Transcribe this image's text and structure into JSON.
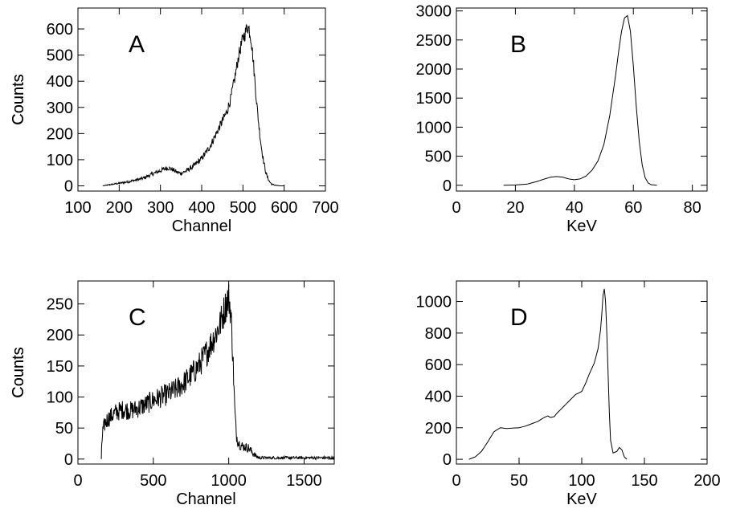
{
  "chart_data": [
    {
      "type": "line",
      "panel_label": "A",
      "xlabel": "Channel",
      "ylabel": "Counts",
      "xlim": [
        100,
        700
      ],
      "ylim": [
        -20,
        680
      ],
      "xticks": [
        100,
        200,
        300,
        400,
        500,
        600,
        700
      ],
      "yticks": [
        0,
        100,
        200,
        300,
        400,
        500,
        600
      ],
      "noisy": true,
      "series": [
        {
          "x": [
            160,
            180,
            200,
            220,
            240,
            260,
            280,
            300,
            310,
            320,
            330,
            340,
            350,
            360,
            380,
            400,
            420,
            440,
            460,
            470,
            480,
            490,
            500,
            505,
            510,
            515,
            520,
            525,
            530,
            535,
            540,
            545,
            550,
            555,
            560,
            565,
            570,
            580,
            590,
            600
          ],
          "y": [
            0,
            5,
            10,
            15,
            22,
            30,
            45,
            58,
            66,
            68,
            62,
            52,
            48,
            55,
            75,
            105,
            150,
            215,
            280,
            330,
            410,
            500,
            565,
            580,
            610,
            600,
            560,
            480,
            380,
            290,
            210,
            145,
            95,
            55,
            30,
            15,
            6,
            2,
            0,
            0
          ]
        }
      ]
    },
    {
      "type": "line",
      "panel_label": "B",
      "xlabel": "KeV",
      "ylabel": "Counts",
      "xlim": [
        0,
        85
      ],
      "ylim": [
        -100,
        3050
      ],
      "xticks": [
        0,
        20,
        40,
        60,
        80
      ],
      "yticks": [
        0,
        500,
        1000,
        1500,
        2000,
        2500,
        3000
      ],
      "noisy": false,
      "series": [
        {
          "x": [
            16,
            20,
            24,
            27,
            30,
            32,
            34,
            36,
            38,
            40,
            42,
            44,
            46,
            48,
            50,
            52,
            54,
            55,
            56,
            57,
            58,
            59,
            60,
            61,
            62,
            63,
            64,
            65,
            66,
            68
          ],
          "y": [
            0,
            5,
            20,
            60,
            110,
            140,
            150,
            140,
            110,
            95,
            110,
            160,
            260,
            420,
            700,
            1200,
            1900,
            2300,
            2650,
            2880,
            2920,
            2650,
            2050,
            1350,
            750,
            350,
            130,
            40,
            10,
            0
          ]
        }
      ]
    },
    {
      "type": "line",
      "panel_label": "C",
      "xlabel": "Channel",
      "ylabel": "Counts",
      "xlim": [
        0,
        1700
      ],
      "ylim": [
        -8,
        287
      ],
      "xticks": [
        0,
        500,
        1000,
        1500
      ],
      "yticks": [
        0,
        50,
        100,
        150,
        200,
        250
      ],
      "noisy": true,
      "series": [
        {
          "x": [
            155,
            158,
            165,
            180,
            200,
            250,
            300,
            350,
            400,
            450,
            500,
            550,
            600,
            650,
            700,
            750,
            800,
            850,
            900,
            940,
            970,
            990,
            1000,
            1010,
            1020,
            1030,
            1040,
            1050,
            1060,
            1070,
            1080,
            1100,
            1130,
            1160,
            1180,
            1200,
            1300,
            1400,
            1500,
            1600,
            1700
          ],
          "y": [
            0,
            25,
            45,
            58,
            65,
            75,
            80,
            78,
            82,
            88,
            95,
            100,
            105,
            112,
            122,
            135,
            150,
            170,
            195,
            215,
            240,
            255,
            260,
            245,
            210,
            150,
            80,
            40,
            30,
            25,
            22,
            20,
            18,
            10,
            5,
            2,
            2,
            2,
            2,
            2,
            2
          ]
        }
      ]
    },
    {
      "type": "line",
      "panel_label": "D",
      "xlabel": "KeV",
      "ylabel": "Counts",
      "xlim": [
        0,
        200
      ],
      "ylim": [
        -30,
        1130
      ],
      "xticks": [
        0,
        50,
        100,
        150,
        200
      ],
      "yticks": [
        0,
        200,
        400,
        600,
        800,
        1000
      ],
      "noisy": false,
      "series": [
        {
          "x": [
            10,
            15,
            20,
            25,
            30,
            35,
            40,
            45,
            50,
            55,
            60,
            65,
            70,
            73,
            75,
            78,
            80,
            85,
            90,
            95,
            100,
            103,
            106,
            110,
            113,
            115,
            116,
            117,
            118,
            119,
            120,
            121,
            122,
            123,
            125,
            128,
            130,
            132,
            134,
            136
          ],
          "y": [
            0,
            15,
            50,
            110,
            175,
            200,
            195,
            198,
            200,
            210,
            225,
            240,
            265,
            275,
            265,
            270,
            290,
            330,
            370,
            410,
            430,
            480,
            540,
            610,
            700,
            820,
            920,
            1040,
            1080,
            1000,
            800,
            550,
            300,
            120,
            40,
            50,
            75,
            60,
            15,
            0
          ]
        }
      ]
    }
  ]
}
